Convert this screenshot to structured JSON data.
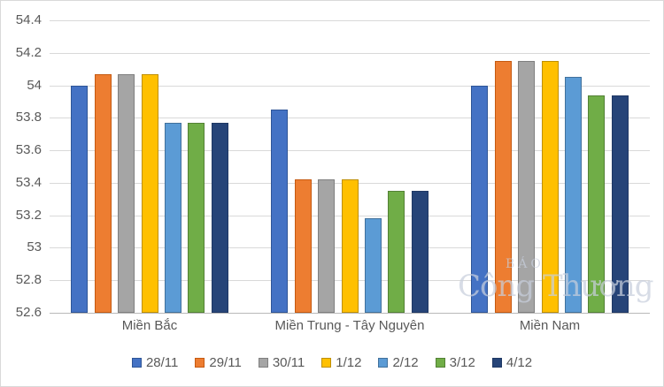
{
  "chart_data": {
    "type": "bar",
    "title": "",
    "xlabel": "",
    "ylabel": "",
    "categories": [
      "Miền Bắc",
      "Miền Trung - Tây Nguyên",
      "Miền Nam"
    ],
    "series": [
      {
        "name": "28/11",
        "color": "#4472C4",
        "border": "#2E5597",
        "values": [
          54.0,
          53.85,
          54.0
        ]
      },
      {
        "name": "29/11",
        "color": "#ED7D31",
        "border": "#C55A11",
        "values": [
          54.07,
          53.42,
          54.15
        ]
      },
      {
        "name": "30/11",
        "color": "#A5A5A5",
        "border": "#7F7F7F",
        "values": [
          54.07,
          53.42,
          54.15
        ]
      },
      {
        "name": "1/12",
        "color": "#FFC000",
        "border": "#BF8F00",
        "values": [
          54.07,
          53.42,
          54.15
        ]
      },
      {
        "name": "2/12",
        "color": "#5B9BD5",
        "border": "#41719C",
        "values": [
          53.77,
          53.18,
          54.05
        ]
      },
      {
        "name": "3/12",
        "color": "#70AD47",
        "border": "#538135",
        "values": [
          53.77,
          53.35,
          53.94
        ]
      },
      {
        "name": "4/12",
        "color": "#264478",
        "border": "#1F3864",
        "values": [
          53.77,
          53.35,
          53.94
        ]
      }
    ],
    "ylim": [
      52.6,
      54.4
    ],
    "ytick_labels": [
      "54.4",
      "54.2",
      "54",
      "53.8",
      "53.6",
      "53.4",
      "53.2",
      "53",
      "52.8",
      "52.6"
    ],
    "grid": true,
    "legend_position": "bottom",
    "colors": {
      "gridline": "#d9d9d9",
      "axis_line": "#b9b9b9",
      "tick_label": "#595959"
    }
  },
  "watermark": {
    "line1": "BÁO",
    "line2": "Công Thương"
  }
}
